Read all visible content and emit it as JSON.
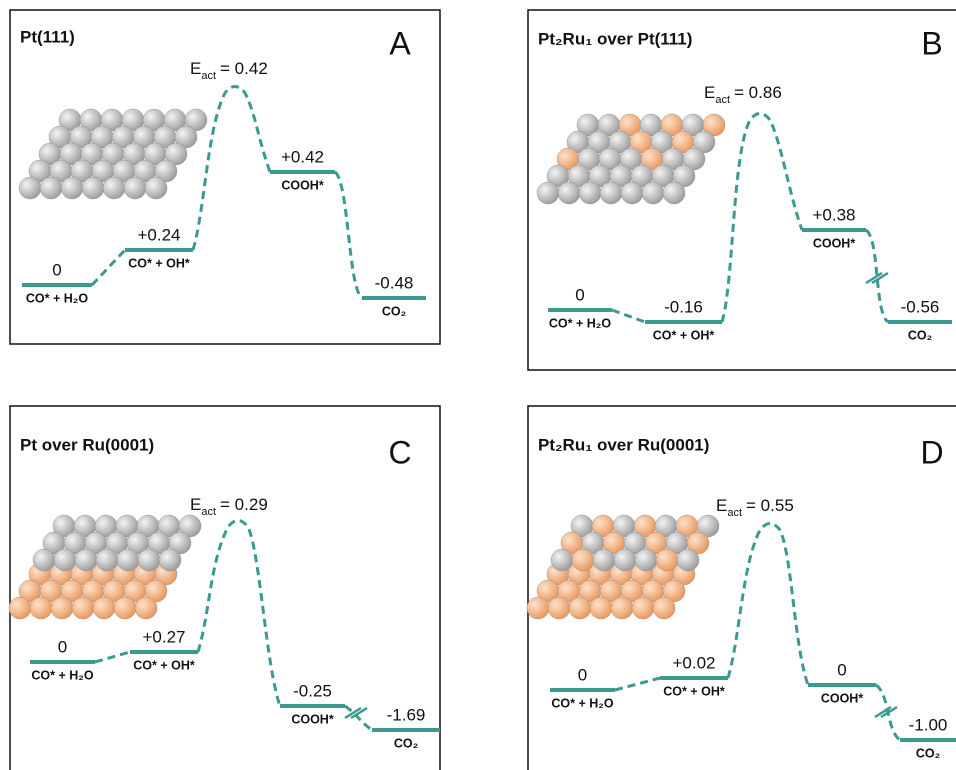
{
  "panels": [
    {
      "title": "Pt(111)",
      "letter": "A",
      "energy_symbol": "E",
      "energy_subscript": "act",
      "barrier": "= 0.42",
      "levels": [
        {
          "energy": "0",
          "state": "CO* + H₂O"
        },
        {
          "energy": "+0.24",
          "state": "CO* + OH*"
        },
        {
          "energy": "+0.42",
          "state": "COOH*"
        },
        {
          "energy": "-0.48",
          "state": "CO₂"
        }
      ]
    },
    {
      "title": "Pt₂Ru₁ over Pt(111)",
      "letter": "B",
      "energy_symbol": "E",
      "energy_subscript": "act",
      "barrier": "= 0.86",
      "levels": [
        {
          "energy": "0",
          "state": "CO* + H₂O"
        },
        {
          "energy": "-0.16",
          "state": "CO* + OH*"
        },
        {
          "energy": "+0.38",
          "state": "COOH*"
        },
        {
          "energy": "-0.56",
          "state": "CO₂"
        }
      ]
    },
    {
      "title": "Pt over Ru(0001)",
      "letter": "C",
      "energy_symbol": "E",
      "energy_subscript": "act",
      "barrier": "= 0.29",
      "levels": [
        {
          "energy": "0",
          "state": "CO* + H₂O"
        },
        {
          "energy": "+0.27",
          "state": "CO* + OH*"
        },
        {
          "energy": "-0.25",
          "state": "COOH*"
        },
        {
          "energy": "-1.69",
          "state": "CO₂"
        }
      ]
    },
    {
      "title": "Pt₂Ru₁ over Ru(0001)",
      "letter": "D",
      "energy_symbol": "E",
      "energy_subscript": "act",
      "barrier": "= 0.55",
      "levels": [
        {
          "energy": "0",
          "state": "CO* + H₂O"
        },
        {
          "energy": "+0.02",
          "state": "CO* + OH*"
        },
        {
          "energy": "0",
          "state": "COOH*"
        },
        {
          "energy": "-1.00",
          "state": "CO₂"
        }
      ]
    }
  ]
}
